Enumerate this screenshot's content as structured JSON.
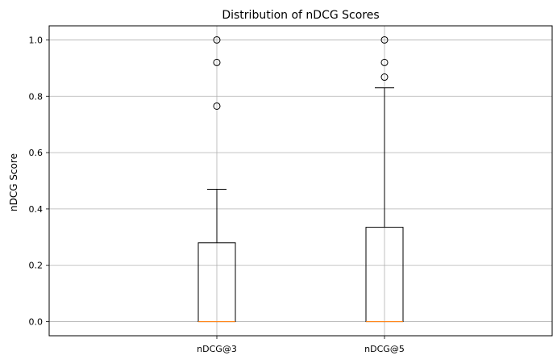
{
  "chart_data": {
    "type": "box",
    "title": "Distribution of nDCG Scores",
    "xlabel": "",
    "ylabel": "nDCG Score",
    "ylim": [
      -0.05,
      1.05
    ],
    "y_ticks": [
      0.0,
      0.2,
      0.4,
      0.6,
      0.8,
      1.0
    ],
    "y_tick_labels": [
      "0.0",
      "0.2",
      "0.4",
      "0.6",
      "0.8",
      "1.0"
    ],
    "grid": true,
    "categories": [
      "nDCG@3",
      "nDCG@5"
    ],
    "boxes": [
      {
        "label": "nDCG@3",
        "whisker_low": 0.0,
        "q1": 0.0,
        "median": 0.0,
        "q3": 0.28,
        "whisker_high": 0.47,
        "outliers": [
          0.765,
          0.92,
          1.0
        ]
      },
      {
        "label": "nDCG@5",
        "whisker_low": 0.0,
        "q1": 0.0,
        "median": 0.0,
        "q3": 0.335,
        "whisker_high": 0.83,
        "outliers": [
          0.868,
          0.92,
          1.0
        ]
      }
    ],
    "colors": {
      "box": "#000000",
      "median": "#ff7f0e",
      "grid": "#b0b0b0"
    }
  }
}
